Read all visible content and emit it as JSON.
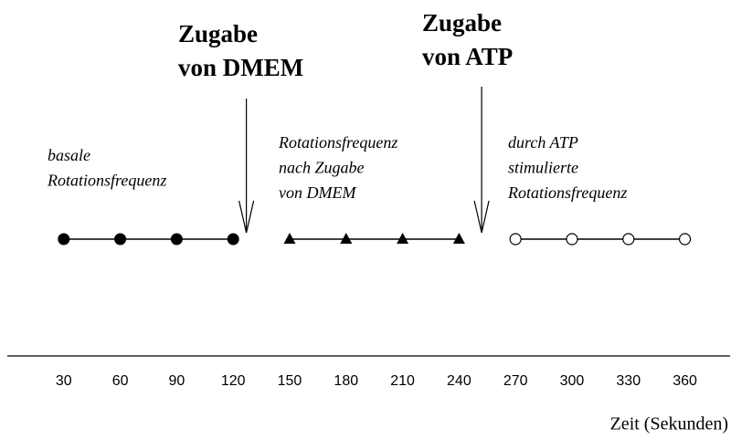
{
  "chart_data": {
    "type": "timeline",
    "xlabel": "Zeit (Sekunden)",
    "xlim": [
      0,
      384
    ],
    "xticks": [
      30,
      60,
      90,
      120,
      150,
      180,
      210,
      240,
      270,
      300,
      330,
      360
    ],
    "series": [
      {
        "marker": "filled-circle",
        "color": "#000000",
        "x": [
          30,
          60,
          90,
          120
        ]
      },
      {
        "marker": "triangle",
        "color": "#000000",
        "x": [
          150,
          180,
          210,
          240
        ]
      },
      {
        "marker": "open-circle",
        "color": "#000000",
        "x": [
          270,
          300,
          330,
          360
        ]
      }
    ],
    "arrows": [
      {
        "label": [
          "Zugabe",
          "von DMEM"
        ],
        "x": 127
      },
      {
        "label": [
          "Zugabe",
          "von ATP"
        ],
        "x": 252
      }
    ],
    "notes": [
      [
        "basale",
        "Rotationsfrequenz"
      ],
      [
        "Rotationsfrequenz",
        "nach Zugabe",
        "von DMEM"
      ],
      [
        "durch ATP",
        "stimulierte",
        "Rotationsfrequenz"
      ]
    ]
  }
}
